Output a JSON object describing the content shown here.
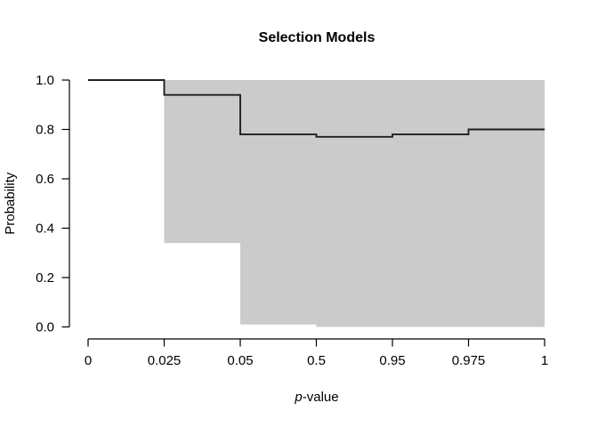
{
  "title": "Selection Models",
  "axes": {
    "y_label": "Probability",
    "x_label_italic": "p",
    "x_label_rest": "-value",
    "x_ticks": [
      "0",
      "0.025",
      "0.05",
      "0.5",
      "0.95",
      "0.975",
      "1"
    ],
    "y_ticks": [
      "0.0",
      "0.2",
      "0.4",
      "0.6",
      "0.8",
      "1.0"
    ]
  },
  "colors": {
    "band": "#cbcbcb",
    "line": "#1f1f1f",
    "axis": "#000000",
    "background": "#ffffff"
  },
  "chart_data": {
    "type": "line",
    "subtype": "step-function-with-confidence-band",
    "title": "Selection Models",
    "xlabel": "p-value",
    "ylabel": "Probability",
    "ylim": [
      0.0,
      1.0
    ],
    "grid": false,
    "legend": null,
    "x_tick_values": [
      0,
      0.025,
      0.05,
      0.5,
      0.95,
      0.975,
      1
    ],
    "x_axis_note": "x ticks are equally spaced on screen despite non-uniform p-value intervals",
    "step_segments": [
      {
        "x_from": 0,
        "x_to": 0.025,
        "y": 1.0
      },
      {
        "x_from": 0.025,
        "x_to": 0.05,
        "y": 0.94
      },
      {
        "x_from": 0.05,
        "x_to": 0.5,
        "y": 0.78
      },
      {
        "x_from": 0.5,
        "x_to": 0.95,
        "y": 0.77
      },
      {
        "x_from": 0.95,
        "x_to": 0.975,
        "y": 0.78
      },
      {
        "x_from": 0.975,
        "x_to": 1,
        "y": 0.8
      }
    ],
    "confidence_band": [
      {
        "x_from": 0.025,
        "x_to": 0.05,
        "lower": 0.34,
        "upper": 1.0
      },
      {
        "x_from": 0.05,
        "x_to": 0.5,
        "lower": 0.01,
        "upper": 1.0
      },
      {
        "x_from": 0.5,
        "x_to": 1,
        "lower": 0.0,
        "upper": 1.0
      }
    ],
    "band_color": "#cbcbcb",
    "line_color": "#1f1f1f"
  }
}
